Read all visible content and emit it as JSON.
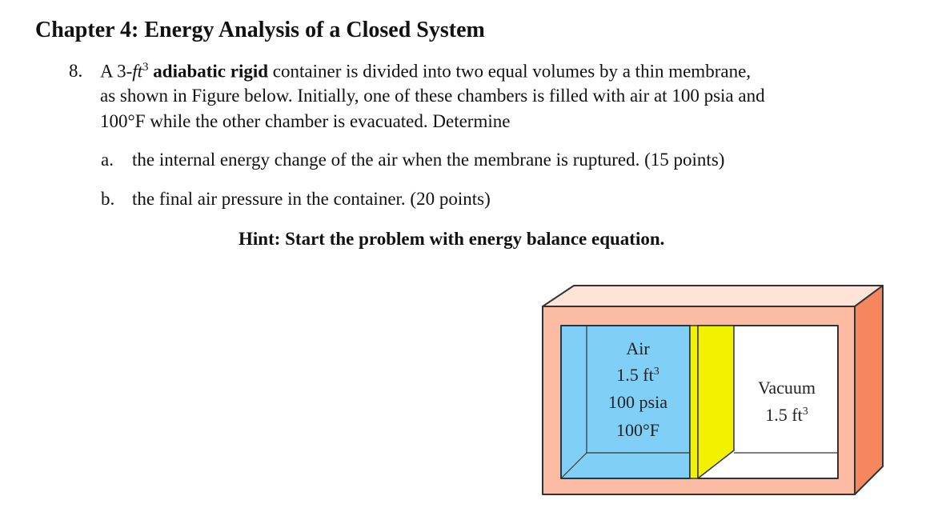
{
  "title": "Chapter 4: Energy Analysis of a Closed System",
  "problem": {
    "number": "8.",
    "l1_a": "A 3-",
    "l1_unit": "ft",
    "l1_sup": "3",
    "l1_bold": "adiabatic rigid",
    "l1_b": "container is divided into two equal volumes by a thin membrane,",
    "l2": "as shown in Figure below. Initially, one of these chambers is filled with air at 100 psia and",
    "l3": "100°F while the other chamber is evacuated. Determine",
    "parts": [
      {
        "label": "a.",
        "text": "the internal energy change of the air when the membrane is ruptured. (15 points)"
      },
      {
        "label": "b.",
        "text": "the final air pressure in the container. (20 points)"
      }
    ],
    "hint": "Hint: Start the problem with energy balance equation."
  },
  "figure": {
    "air": [
      "Air",
      "1.5 ft",
      "100 psia",
      "100°F"
    ],
    "vacuum": [
      "Vacuum",
      "1.5 ft"
    ],
    "sup": "3",
    "colors": {
      "frame": "#fbbca3",
      "top": "#fde3d8",
      "side": "#f5865e",
      "air": "#80cff6",
      "membrane": "#f2f200",
      "vacuum": "#ffffff"
    }
  }
}
